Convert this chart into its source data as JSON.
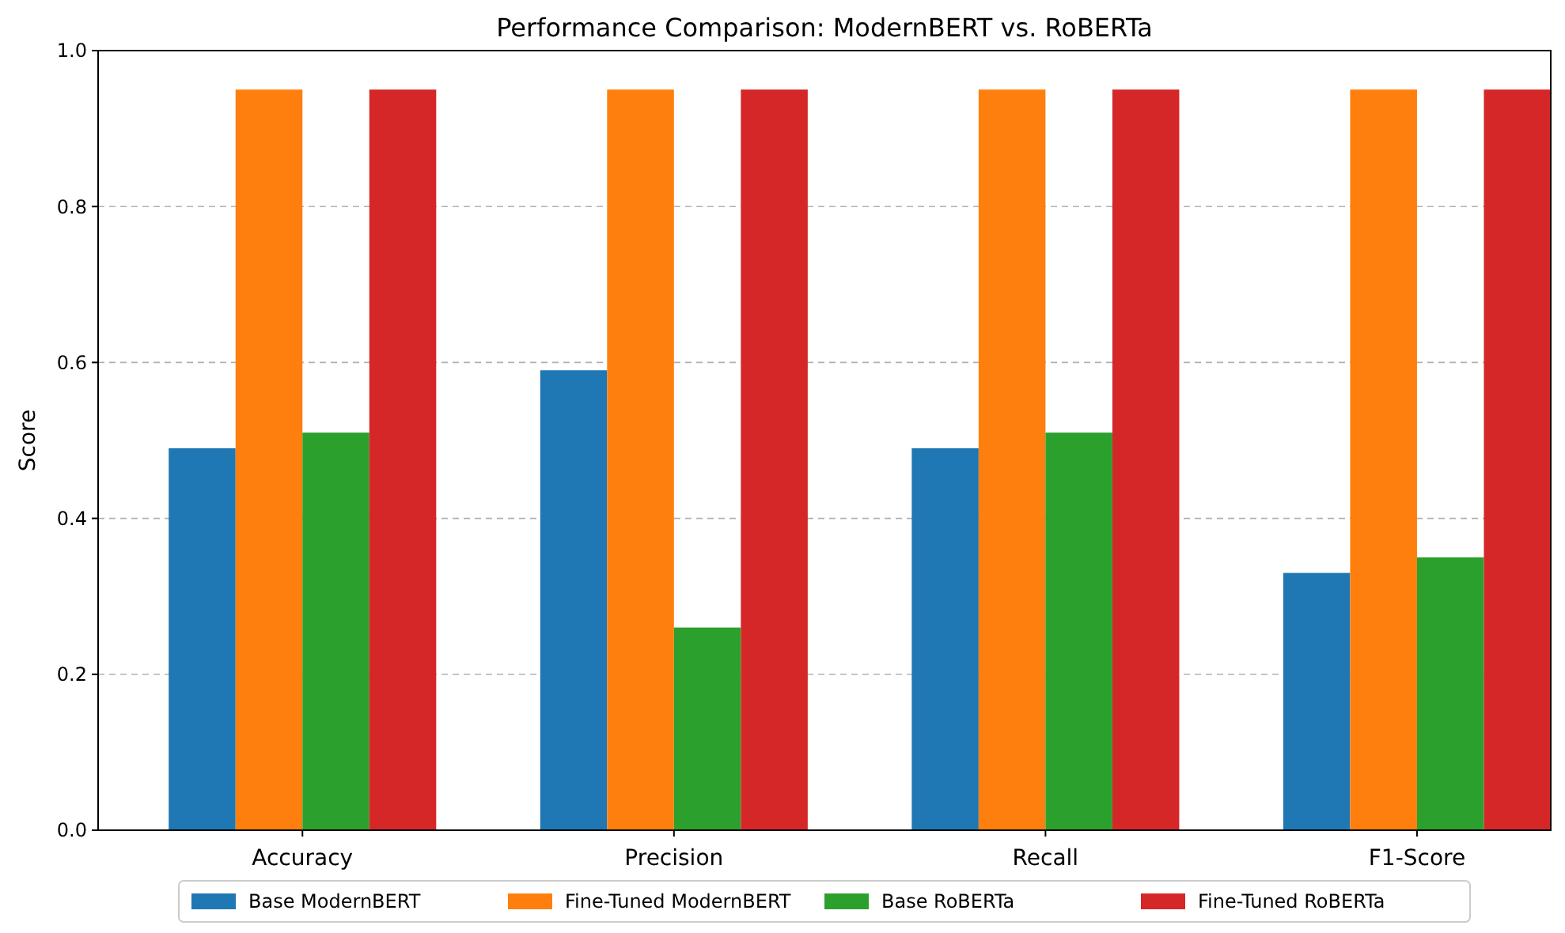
{
  "chart_data": {
    "type": "bar",
    "title": "Performance Comparison: ModernBERT vs. RoBERTa",
    "ylabel": "Score",
    "categories": [
      "Accuracy",
      "Precision",
      "Recall",
      "F1-Score"
    ],
    "series": [
      {
        "name": "Base ModernBERT",
        "color": "#1f77b4",
        "values": [
          0.49,
          0.59,
          0.49,
          0.33
        ]
      },
      {
        "name": "Fine-Tuned ModernBERT",
        "color": "#ff7f0e",
        "values": [
          0.95,
          0.95,
          0.95,
          0.95
        ]
      },
      {
        "name": "Base RoBERTa",
        "color": "#2ca02c",
        "values": [
          0.51,
          0.26,
          0.51,
          0.35
        ]
      },
      {
        "name": "Fine-Tuned RoBERTa",
        "color": "#d62728",
        "values": [
          0.95,
          0.95,
          0.95,
          0.95
        ]
      }
    ],
    "ylim": [
      0,
      1
    ],
    "yticks": [
      {
        "value": 0,
        "label": "0.0"
      },
      {
        "value": 0.2,
        "label": "0.2"
      },
      {
        "value": 0.4,
        "label": "0.4"
      },
      {
        "value": 0.6,
        "label": "0.6"
      },
      {
        "value": 0.8,
        "label": "0.8"
      },
      {
        "value": 1,
        "label": "1.0"
      }
    ],
    "grid": "y",
    "legend": "bottom"
  }
}
